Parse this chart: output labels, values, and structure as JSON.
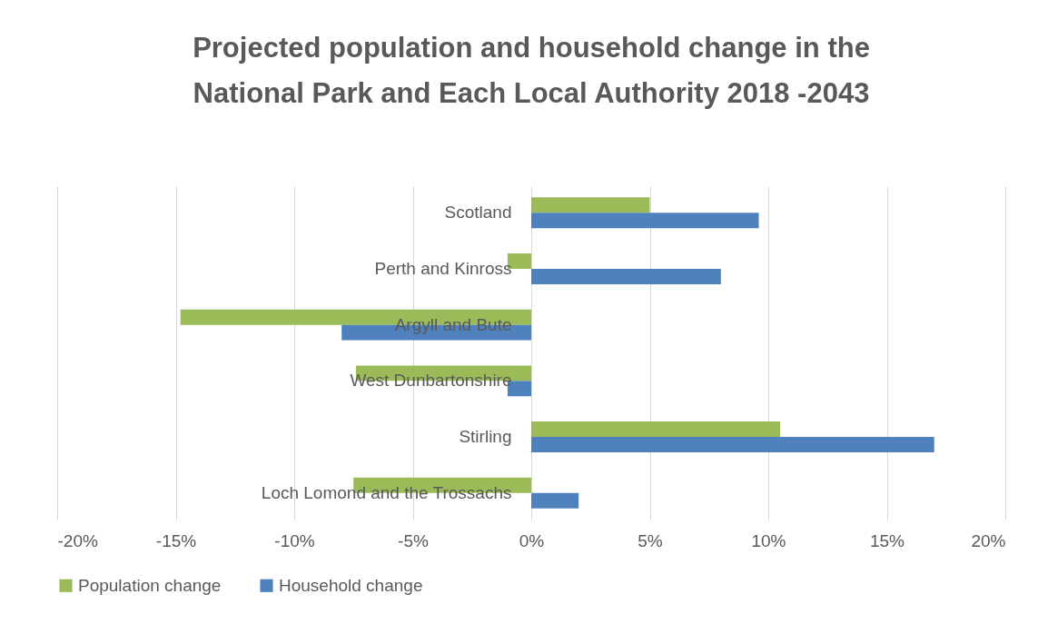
{
  "chart_data": {
    "type": "bar",
    "orientation": "horizontal",
    "title": "Projected population and household change in the National Park and Each Local Authority 2018 -2043",
    "categories": [
      "Scotland",
      "Perth and Kinross",
      "Argyll and Bute",
      "West Dunbartonshire",
      "Stirling",
      "Loch Lomond and the Trossachs"
    ],
    "series": [
      {
        "name": "Population change",
        "color": "#9bbb59",
        "values": [
          5.0,
          -1.0,
          -14.8,
          -7.4,
          10.5,
          -7.5
        ]
      },
      {
        "name": "Household change",
        "color": "#4f81bd",
        "values": [
          9.6,
          8.0,
          -8.0,
          -1.0,
          17.0,
          2.0
        ]
      }
    ],
    "xlim": [
      -20,
      20
    ],
    "xticks": [
      {
        "value": -20,
        "label": "-20%"
      },
      {
        "value": -15,
        "label": "-15%"
      },
      {
        "value": -10,
        "label": "-10%"
      },
      {
        "value": -5,
        "label": "-5%"
      },
      {
        "value": 0,
        "label": "0%"
      },
      {
        "value": 5,
        "label": "5%"
      },
      {
        "value": 10,
        "label": "10%"
      },
      {
        "value": 15,
        "label": "15%"
      },
      {
        "value": 20,
        "label": "20%"
      }
    ],
    "grid": "x",
    "legend": "bottom"
  }
}
